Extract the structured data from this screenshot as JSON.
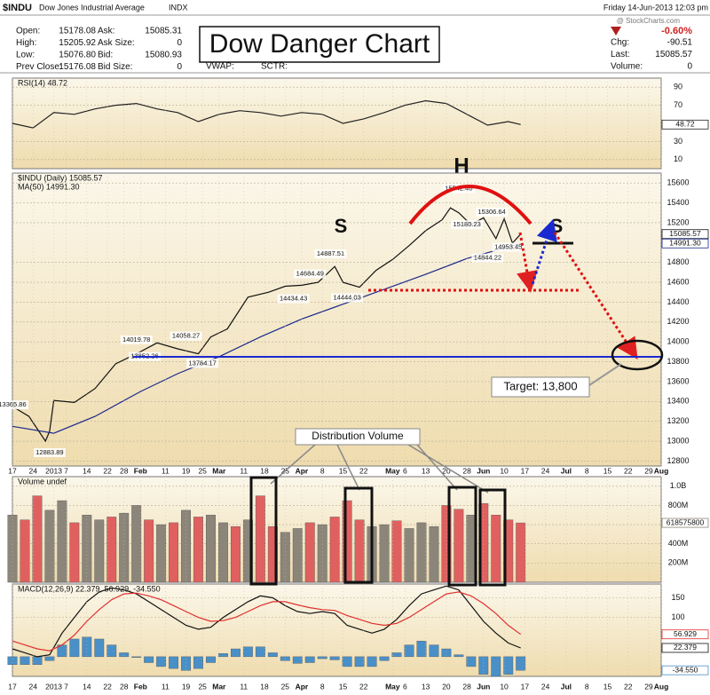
{
  "header": {
    "symbol": "$INDU",
    "name": "Dow Jones Industrial Average",
    "exchange": "INDX",
    "date": "Friday 14-Jun-2013 12:03 pm",
    "watermark": "@ StockCharts.com",
    "quotes": [
      [
        [
          "Open:",
          "15178.08"
        ],
        [
          "High:",
          "15205.92"
        ],
        [
          "Low:",
          "15076.80"
        ],
        [
          "Prev Close:",
          "15176.08"
        ]
      ],
      [
        [
          "Ask:",
          "15085.31"
        ],
        [
          "Ask Size:",
          "0"
        ],
        [
          "Bid:",
          "15080.93"
        ],
        [
          "Bid Size:",
          "0"
        ]
      ]
    ],
    "change_pct": "-0.60%",
    "right_quotes": [
      [
        "Chg:",
        "-90.51"
      ],
      [
        "Last:",
        "15085.57"
      ],
      [
        "Volume:",
        "0"
      ]
    ],
    "extras": [
      "VWAP:",
      "SCTR:"
    ]
  },
  "annotations": {
    "title": "Dow Danger Chart",
    "head": "H",
    "left_shoulder": "S",
    "right_shoulder": "S",
    "target": "Target: 13,800",
    "distribution": "Distribution Volume"
  },
  "chart_data": {
    "type": "stock",
    "xlim": [
      0,
      157
    ],
    "xticks": [
      {
        "value": 0,
        "label": "17"
      },
      {
        "value": 5,
        "label": "24"
      },
      {
        "value": 10,
        "label": "2013"
      },
      {
        "value": 13,
        "label": "7"
      },
      {
        "value": 18,
        "label": "14"
      },
      {
        "value": 23,
        "label": "22"
      },
      {
        "value": 27,
        "label": "28"
      },
      {
        "value": 31,
        "label": "Feb"
      },
      {
        "value": 37,
        "label": "11"
      },
      {
        "value": 42,
        "label": "19"
      },
      {
        "value": 46,
        "label": "25"
      },
      {
        "value": 50,
        "label": "Mar"
      },
      {
        "value": 56,
        "label": "11"
      },
      {
        "value": 61,
        "label": "18"
      },
      {
        "value": 66,
        "label": "25"
      },
      {
        "value": 70,
        "label": "Apr"
      },
      {
        "value": 75,
        "label": "8"
      },
      {
        "value": 80,
        "label": "15"
      },
      {
        "value": 85,
        "label": "22"
      },
      {
        "value": 92,
        "label": "May"
      },
      {
        "value": 95,
        "label": "6"
      },
      {
        "value": 100,
        "label": "13"
      },
      {
        "value": 105,
        "label": "20"
      },
      {
        "value": 110,
        "label": "28"
      },
      {
        "value": 114,
        "label": "Jun"
      },
      {
        "value": 119,
        "label": "10"
      },
      {
        "value": 124,
        "label": "17"
      },
      {
        "value": 129,
        "label": "24"
      },
      {
        "value": 134,
        "label": "Jul"
      },
      {
        "value": 139,
        "label": "8"
      },
      {
        "value": 144,
        "label": "15"
      },
      {
        "value": 149,
        "label": "22"
      },
      {
        "value": 154,
        "label": "29"
      },
      {
        "value": 157,
        "label": "Aug"
      }
    ],
    "panels": [
      {
        "type": "line",
        "legend": [
          "RSI(14) 48.72"
        ],
        "ylim": [
          0,
          100
        ],
        "yticks": [
          10,
          30,
          70,
          90
        ],
        "series": [
          {
            "kind": "line",
            "color": "#222222",
            "last_label": "48.72",
            "x": [
              0,
              5,
              10,
              15,
              20,
              25,
              30,
              35,
              40,
              45,
              50,
              55,
              60,
              65,
              70,
              75,
              80,
              85,
              90,
              95,
              100,
              105,
              110,
              115,
              120,
              123
            ],
            "values": [
              50,
              45,
              62,
              60,
              66,
              70,
              72,
              66,
              62,
              52,
              60,
              64,
              62,
              58,
              62,
              60,
              50,
              55,
              62,
              70,
              75,
              72,
              60,
              48,
              52,
              48.72
            ]
          }
        ]
      },
      {
        "type": "line",
        "legend": [
          "$INDU (Daily) 15085.57",
          "MA(50) 14991.30"
        ],
        "ylim": [
          12750,
          15700
        ],
        "yticks": [
          12800,
          13000,
          13200,
          13400,
          13600,
          13800,
          14000,
          14200,
          14400,
          14600,
          14800,
          15200,
          15400,
          15600
        ],
        "series": [
          {
            "kind": "line",
            "color": "#111111",
            "last_label": "15085.57",
            "x": [
              0,
              4,
              8,
              9,
              10,
              15,
              20,
              25,
              30,
              35,
              40,
              45,
              48,
              52,
              57,
              62,
              66,
              70,
              74,
              78,
              80,
              84,
              88,
              92,
              96,
              100,
              104,
              106,
              108,
              111,
              114,
              117,
              119,
              121,
              123
            ],
            "values": [
              13350,
              13250,
              13000,
              13100,
              13410,
              13390,
              13530,
              13780,
              13880,
              13990,
              13930,
              13880,
              14050,
              14130,
              14450,
              14500,
              14560,
              14570,
              14600,
              14760,
              14600,
              14550,
              14720,
              14830,
              14970,
              15120,
              15230,
              15350,
              15300,
              15180,
              15250,
              15040,
              15240,
              14995,
              15085.57
            ]
          },
          {
            "kind": "line",
            "color": "#1a2a8c",
            "last_label": "14991.30",
            "x": [
              0,
              10,
              20,
              31,
              40,
              50,
              60,
              70,
              80,
              90,
              100,
              110,
              123
            ],
            "values": [
              13150,
              13080,
              13250,
              13500,
              13680,
              13850,
              14050,
              14230,
              14380,
              14530,
              14680,
              14840,
              14991.3
            ]
          }
        ],
        "price_labels": [
          {
            "x": 0,
            "value": 13365.86,
            "label": "13365.86"
          },
          {
            "x": 9,
            "value": 12883.89,
            "label": "12883.89"
          },
          {
            "x": 30,
            "value": 14019.78,
            "label": "14019.78"
          },
          {
            "x": 32,
            "value": 13852.26,
            "label": "13852.26"
          },
          {
            "x": 42,
            "value": 14058.27,
            "label": "14058.27"
          },
          {
            "x": 46,
            "value": 13784.17,
            "label": "13784.17"
          },
          {
            "x": 68,
            "value": 14434.43,
            "label": "14434.43"
          },
          {
            "x": 72,
            "value": 14684.49,
            "label": "14684.49"
          },
          {
            "x": 77,
            "value": 14887.51,
            "label": "14887.51"
          },
          {
            "x": 81,
            "value": 14444.03,
            "label": "14444.03"
          },
          {
            "x": 108,
            "value": 15542.4,
            "label": "15542.40"
          },
          {
            "x": 110,
            "value": 15180.23,
            "label": "15180.23"
          },
          {
            "x": 116,
            "value": 15306.64,
            "label": "15306.64"
          },
          {
            "x": 115,
            "value": 14844.22,
            "label": "14844.22"
          },
          {
            "x": 120,
            "value": 14953.45,
            "label": "14953.45"
          }
        ]
      },
      {
        "type": "bar",
        "legend": [
          "Volume undef"
        ],
        "ylim": [
          0,
          1100
        ],
        "yticks": [
          {
            "value": 200,
            "label": "200M"
          },
          {
            "value": 400,
            "label": "400M"
          },
          {
            "value": 600,
            "label": "600M"
          },
          {
            "value": 800,
            "label": "800M"
          },
          {
            "value": 1000,
            "label": "1.0B"
          }
        ],
        "series": [
          {
            "kind": "bar",
            "color": "#8c857a",
            "last_label": "618575800",
            "x": [
              0,
              3,
              6,
              9,
              12,
              15,
              18,
              21,
              24,
              27,
              30,
              33,
              36,
              39,
              42,
              45,
              48,
              51,
              54,
              57,
              60,
              63,
              66,
              69,
              72,
              75,
              78,
              81,
              84,
              87,
              90,
              93,
              96,
              99,
              102,
              105,
              108,
              111,
              114,
              117,
              120,
              123
            ],
            "values": [
              700,
              650,
              900,
              750,
              850,
              620,
              700,
              650,
              680,
              720,
              800,
              650,
              600,
              620,
              750,
              680,
              700,
              620,
              580,
              650,
              900,
              580,
              520,
              560,
              620,
              600,
              680,
              850,
              650,
              580,
              600,
              640,
              560,
              620,
              580,
              800,
              760,
              700,
              820,
              700,
              650,
              618.5758
            ],
            "colors": [
              "#8c857a",
              "#e06060",
              "#e06060",
              "#8c857a",
              "#8c857a",
              "#e06060",
              "#8c857a",
              "#8c857a",
              "#e06060",
              "#8c857a",
              "#8c857a",
              "#e06060",
              "#8c857a",
              "#e06060",
              "#8c857a",
              "#e06060",
              "#8c857a",
              "#8c857a",
              "#e06060",
              "#8c857a",
              "#e06060",
              "#e06060",
              "#8c857a",
              "#8c857a",
              "#e06060",
              "#8c857a",
              "#e06060",
              "#e06060",
              "#e06060",
              "#8c857a",
              "#8c857a",
              "#e06060",
              "#8c857a",
              "#8c857a",
              "#8c857a",
              "#e06060",
              "#e06060",
              "#8c857a",
              "#e06060",
              "#e06060",
              "#e06060",
              "#e06060"
            ]
          }
        ]
      },
      {
        "type": "line",
        "legend": [
          "MACD(12,26,9) 22.379, 56.929, -34.550"
        ],
        "ylim": [
          -50,
          185
        ],
        "yticks": [
          100,
          150
        ],
        "series": [
          {
            "kind": "bar",
            "color": "#4a90c8",
            "last_label": "-34.550",
            "x": [
              0,
              3,
              6,
              9,
              12,
              15,
              18,
              21,
              24,
              27,
              30,
              33,
              36,
              39,
              42,
              45,
              48,
              51,
              54,
              57,
              60,
              63,
              66,
              69,
              72,
              75,
              78,
              81,
              84,
              87,
              90,
              93,
              96,
              99,
              102,
              105,
              108,
              111,
              114,
              117,
              120,
              123
            ],
            "values": [
              -20,
              -20,
              -20,
              -10,
              30,
              45,
              50,
              45,
              30,
              10,
              -2,
              -15,
              -25,
              -30,
              -35,
              -30,
              -15,
              8,
              20,
              25,
              25,
              10,
              -10,
              -17,
              -15,
              -5,
              -8,
              -25,
              -25,
              -25,
              -10,
              10,
              30,
              40,
              30,
              20,
              5,
              -25,
              -45,
              -50,
              -45,
              -34.55
            ]
          },
          {
            "kind": "line",
            "color": "#111111",
            "last_label": "22.379",
            "x": [
              0,
              3,
              6,
              9,
              12,
              15,
              18,
              21,
              24,
              27,
              30,
              33,
              36,
              39,
              42,
              45,
              48,
              51,
              54,
              57,
              60,
              63,
              66,
              69,
              72,
              75,
              78,
              81,
              84,
              87,
              90,
              93,
              96,
              99,
              102,
              105,
              108,
              111,
              114,
              117,
              120,
              123
            ],
            "values": [
              20,
              10,
              0,
              5,
              60,
              100,
              140,
              165,
              175,
              170,
              160,
              140,
              120,
              100,
              80,
              70,
              75,
              100,
              120,
              140,
              155,
              150,
              130,
              115,
              110,
              115,
              110,
              80,
              70,
              60,
              70,
              95,
              130,
              160,
              170,
              180,
              170,
              130,
              90,
              60,
              35,
              22.379
            ]
          },
          {
            "kind": "line",
            "color": "#e03030",
            "last_label": "56.929",
            "x": [
              0,
              3,
              6,
              9,
              12,
              15,
              18,
              21,
              24,
              27,
              30,
              33,
              36,
              39,
              42,
              45,
              48,
              51,
              54,
              57,
              60,
              63,
              66,
              69,
              72,
              75,
              78,
              81,
              84,
              87,
              90,
              93,
              96,
              99,
              102,
              105,
              108,
              111,
              114,
              117,
              120,
              123
            ],
            "values": [
              40,
              30,
              20,
              15,
              30,
              55,
              90,
              120,
              145,
              160,
              162,
              155,
              145,
              130,
              115,
              100,
              90,
              92,
              100,
              115,
              130,
              140,
              140,
              132,
              125,
              120,
              118,
              105,
              95,
              85,
              80,
              85,
              100,
              120,
              140,
              160,
              165,
              155,
              135,
              110,
              80,
              56.929
            ]
          }
        ]
      }
    ]
  }
}
